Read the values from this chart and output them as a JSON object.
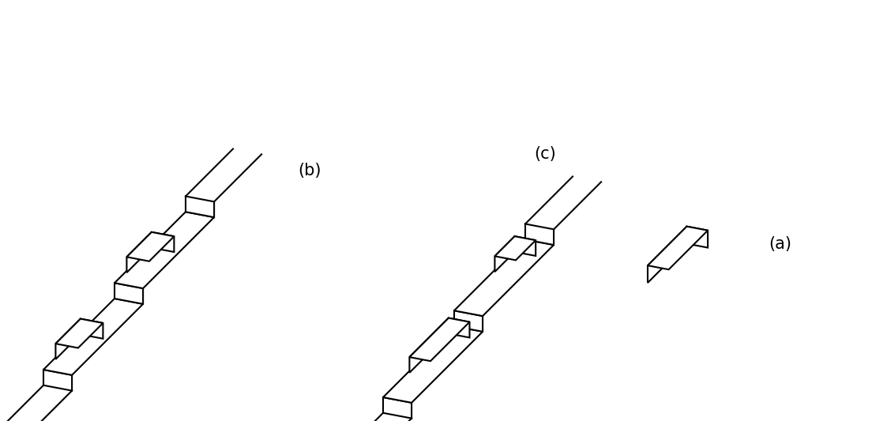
{
  "background_color": "#ffffff",
  "line_color": "#000000",
  "line_width": 1.5,
  "face_color": "#ffffff",
  "labels": {
    "(a)": [
      0.895,
      0.42
    ],
    "(b)": [
      0.355,
      0.595
    ],
    "(c)": [
      0.625,
      0.635
    ]
  },
  "label_fontsize": 15,
  "figsize": [
    11.04,
    5.33
  ],
  "dpi": 100
}
